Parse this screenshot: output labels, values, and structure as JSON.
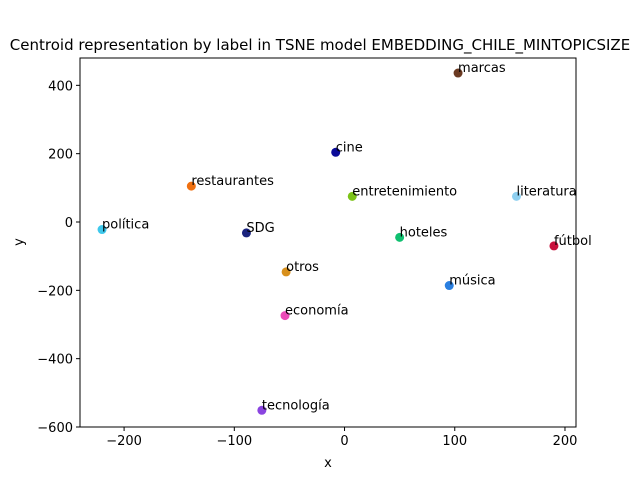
{
  "chart_data": {
    "type": "scatter",
    "title": "Centroid representation by label in TSNE model EMBEDDING_CHILE_MINTOPICSIZE",
    "xlabel": "x",
    "ylabel": "y",
    "xlim": [
      -240,
      210
    ],
    "ylim": [
      -600,
      480
    ],
    "xticks": [
      -200,
      -100,
      0,
      100,
      200
    ],
    "yticks": [
      -600,
      -400,
      -200,
      0,
      200,
      400
    ],
    "xtick_labels": [
      "−200",
      "−100",
      "0",
      "100",
      "200"
    ],
    "ytick_labels": [
      "−600",
      "−400",
      "−200",
      "0",
      "200",
      "400"
    ],
    "grid": false,
    "points": [
      {
        "label": "marcas",
        "x": 103,
        "y": 436,
        "color": "#6b3a22"
      },
      {
        "label": "cine",
        "x": -8,
        "y": 204,
        "color": "#0b0b99"
      },
      {
        "label": "restaurantes",
        "x": -139,
        "y": 105,
        "color": "#f07010"
      },
      {
        "label": "entretenimiento",
        "x": 7,
        "y": 75,
        "color": "#7cc318"
      },
      {
        "label": "literatura",
        "x": 156,
        "y": 75,
        "color": "#8fd0f0"
      },
      {
        "label": "política",
        "x": -220,
        "y": -22,
        "color": "#3ec8ec"
      },
      {
        "label": "SDG",
        "x": -89,
        "y": -32,
        "color": "#1a237e"
      },
      {
        "label": "hoteles",
        "x": 50,
        "y": -45,
        "color": "#10c070"
      },
      {
        "label": "fútbol",
        "x": 190,
        "y": -70,
        "color": "#c8103c"
      },
      {
        "label": "otros",
        "x": -53,
        "y": -146,
        "color": "#d8901c"
      },
      {
        "label": "música",
        "x": 95,
        "y": -186,
        "color": "#2a7fe0"
      },
      {
        "label": "economía",
        "x": -54,
        "y": -274,
        "color": "#ec4ab8"
      },
      {
        "label": "tecnología",
        "x": -75,
        "y": -551,
        "color": "#8a44e0"
      }
    ]
  }
}
